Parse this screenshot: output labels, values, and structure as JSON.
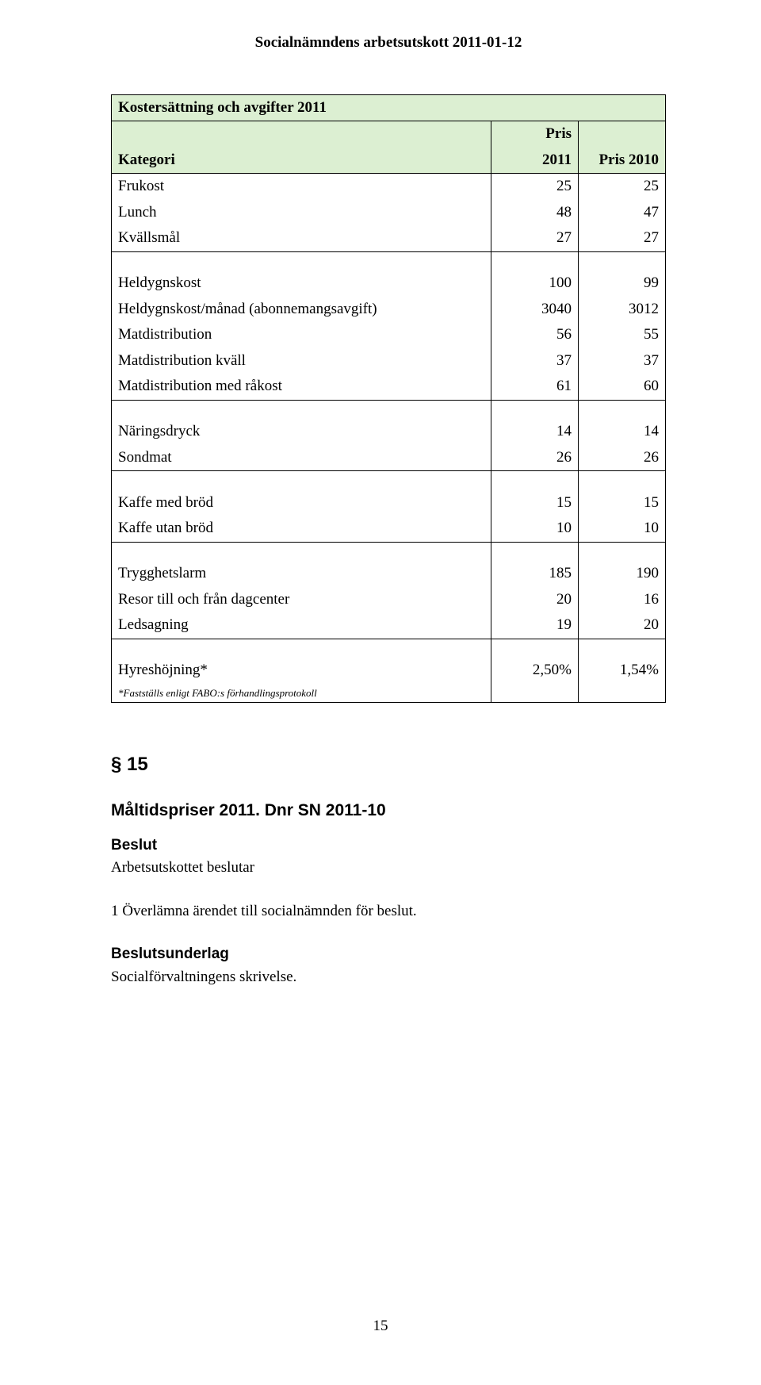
{
  "header": "Socialnämndens arbetsutskott 2011-01-12",
  "table": {
    "title": "Kostersättning och avgifter 2011",
    "cat_label": "Kategori",
    "col1_top": "Pris",
    "col1_bottom": "2011",
    "col2": "Pris 2010",
    "rows": [
      {
        "label": "Frukost",
        "a": "25",
        "b": "25"
      },
      {
        "label": "Lunch",
        "a": "48",
        "b": "47"
      },
      {
        "label": "Kvällsmål",
        "a": "27",
        "b": "27"
      }
    ],
    "group2": [
      {
        "label": "Heldygnskost",
        "a": "100",
        "b": "99"
      },
      {
        "label": "Heldygnskost/månad (abonnemangsavgift)",
        "a": "3040",
        "b": "3012"
      },
      {
        "label": "Matdistribution",
        "a": "56",
        "b": "55"
      },
      {
        "label": "Matdistribution kväll",
        "a": "37",
        "b": "37"
      },
      {
        "label": "Matdistribution med råkost",
        "a": "61",
        "b": "60"
      }
    ],
    "group3": [
      {
        "label": "Näringsdryck",
        "a": "14",
        "b": "14"
      },
      {
        "label": "Sondmat",
        "a": "26",
        "b": "26"
      }
    ],
    "group4": [
      {
        "label": "Kaffe med bröd",
        "a": "15",
        "b": "15"
      },
      {
        "label": "Kaffe utan bröd",
        "a": "10",
        "b": "10"
      }
    ],
    "group5": [
      {
        "label": "Trygghetslarm",
        "a": "185",
        "b": "190"
      },
      {
        "label": "Resor till och från dagcenter",
        "a": "20",
        "b": "16"
      },
      {
        "label": "Ledsagning",
        "a": "19",
        "b": "20"
      }
    ],
    "group6": [
      {
        "label": "Hyreshöjning*",
        "a": "2,50%",
        "b": "1,54%"
      }
    ],
    "footnote": "*Fastställs enligt FABO:s förhandlingsprotokoll"
  },
  "section_no": "§ 15",
  "section_title": "Måltidspriser 2011. Dnr SN 2011-10",
  "beslut": {
    "heading": "Beslut",
    "line1": "Arbetsutskottet beslutar",
    "line2": "1  Överlämna ärendet till socialnämnden för beslut."
  },
  "underlag": {
    "heading": "Beslutsunderlag",
    "line": "Socialförvaltningens skrivelse."
  },
  "pagenum": "15"
}
